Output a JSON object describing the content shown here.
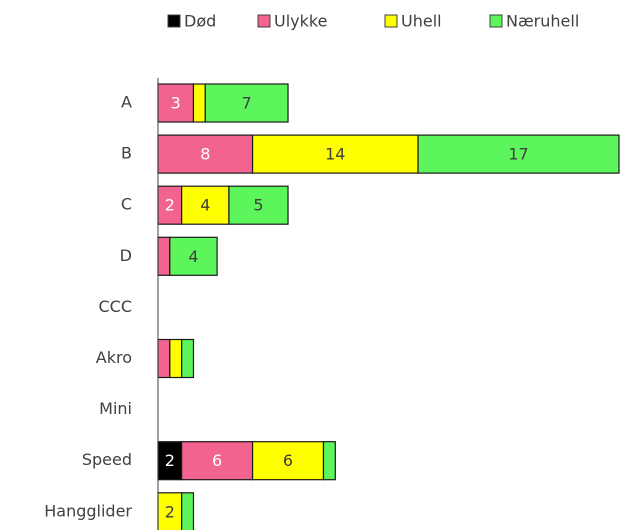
{
  "chart_data": {
    "type": "stacked_barh",
    "categories": [
      "A",
      "B",
      "C",
      "D",
      "CCC",
      "Akro",
      "Mini",
      "Speed",
      "Hangglider"
    ],
    "series": [
      {
        "name": "Død",
        "color": "#000000",
        "values": [
          0,
          0,
          0,
          0,
          0,
          0,
          0,
          2,
          0
        ],
        "value_labels": [
          null,
          null,
          null,
          null,
          null,
          null,
          null,
          "2",
          null
        ]
      },
      {
        "name": "Ulykke",
        "color": "#f2648f",
        "values": [
          3,
          8,
          2,
          1,
          0,
          1,
          0,
          6,
          0
        ],
        "value_labels": [
          "3",
          "8",
          "2",
          null,
          null,
          null,
          null,
          "6",
          null
        ]
      },
      {
        "name": "Uhell",
        "color": "#ffff00",
        "values": [
          1,
          14,
          4,
          0,
          0,
          1,
          0,
          6,
          2
        ],
        "value_labels": [
          null,
          "14",
          "4",
          null,
          null,
          null,
          null,
          "6",
          "2"
        ]
      },
      {
        "name": "Næruhell",
        "color": "#5cf55c",
        "values": [
          7,
          17,
          5,
          4,
          0,
          1,
          0,
          1,
          1
        ],
        "value_labels": [
          "7",
          "17",
          "5",
          "4",
          null,
          null,
          null,
          null,
          null
        ]
      }
    ]
  }
}
